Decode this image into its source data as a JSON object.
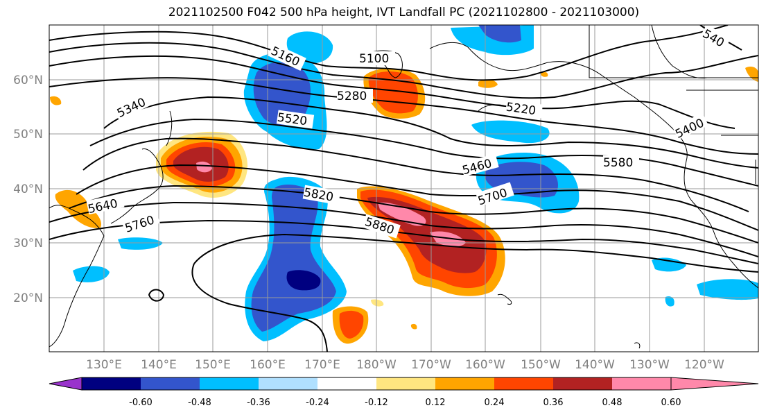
{
  "title": "2021102500 F042 500 hPa height, IVT Landfall PC (2021102800 - 2021103000)",
  "lat_labels": [
    "60°N",
    "50°N",
    "40°N",
    "30°N",
    "20°N"
  ],
  "lon_labels": [
    "130°E",
    "140°E",
    "150°E",
    "160°E",
    "170°E",
    "180°W",
    "170°W",
    "160°W",
    "150°W",
    "140°W",
    "130°W",
    "120°W"
  ],
  "contour_labels": [
    "5160",
    "5100",
    "5280",
    "5220",
    "5340",
    "5520",
    "5400",
    "5460",
    "5580",
    "5820",
    "5640",
    "5700",
    "5760",
    "5880",
    "540"
  ],
  "colorbar": {
    "ticks": [
      "-0.60",
      "-0.48",
      "-0.36",
      "-0.24",
      "-0.12",
      "0.12",
      "0.24",
      "0.36",
      "0.48",
      "0.60"
    ],
    "colors": [
      "#9933cc",
      "#000080",
      "#3355cc",
      "#00bfff",
      "#b0e0ff",
      "#ffffff",
      "#ffe680",
      "#ffa500",
      "#ff4500",
      "#b22222",
      "#ff88aa",
      "#ff88aa"
    ]
  }
}
